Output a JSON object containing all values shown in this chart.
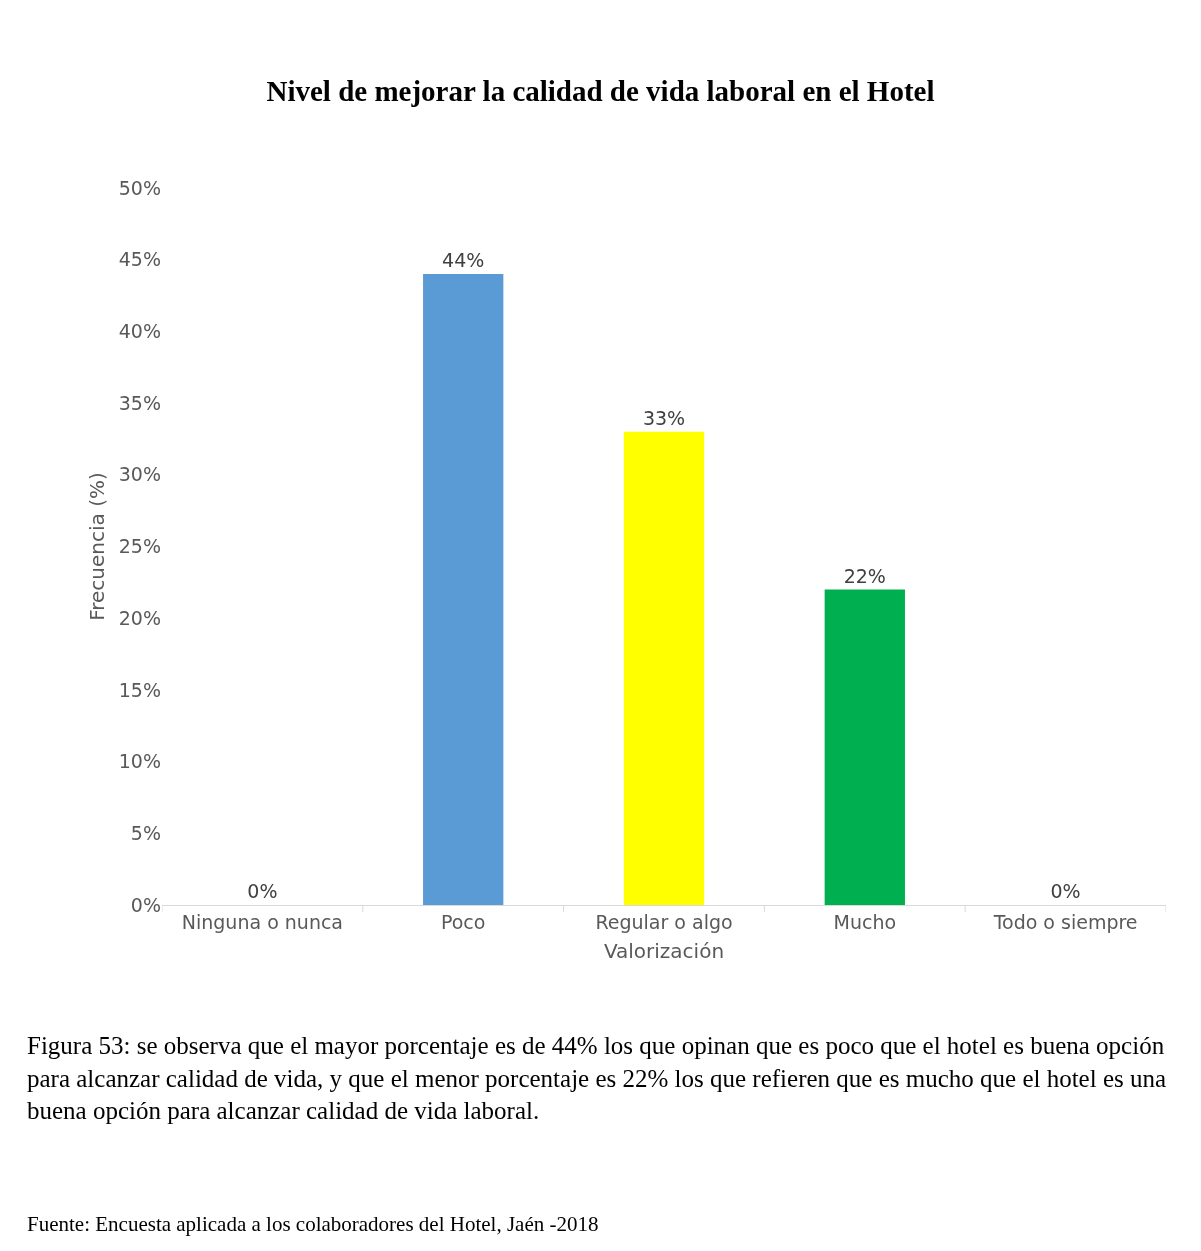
{
  "chart_data": {
    "type": "bar",
    "title": "Nivel de mejorar la calidad de vida laboral en el Hotel",
    "xlabel": "Valorización",
    "ylabel": "Frecuencia (%)",
    "categories": [
      "Ninguna o nunca",
      "Poco",
      "Regular o algo",
      "Mucho",
      "Todo o siempre"
    ],
    "values": [
      0,
      44,
      33,
      22,
      0
    ],
    "colors": [
      "#5b9bd5",
      "#5b9bd5",
      "#ffff00",
      "#00b050",
      "#00b050"
    ],
    "value_labels": [
      "0%",
      "44%",
      "33%",
      "22%",
      "0%"
    ],
    "ylim": [
      0,
      50
    ],
    "yticks": [
      {
        "value": 0,
        "label": "0%"
      },
      {
        "value": 5,
        "label": "5%"
      },
      {
        "value": 10,
        "label": "10%"
      },
      {
        "value": 15,
        "label": "15%"
      },
      {
        "value": 20,
        "label": "20%"
      },
      {
        "value": 25,
        "label": "25%"
      },
      {
        "value": 30,
        "label": "30%"
      },
      {
        "value": 35,
        "label": "35%"
      },
      {
        "value": 40,
        "label": "40%"
      },
      {
        "value": 45,
        "label": "45%"
      },
      {
        "value": 50,
        "label": "50%"
      }
    ],
    "annotations": [
      "Figura 53: se observa que el mayor porcentaje es de 44% los que opinan que es poco que el hotel es buena opción para alcanzar calidad de vida, y que el menor porcentaje es 22% los que refieren que es mucho que el hotel es una buena opción para alcanzar calidad de vida laboral.",
      "Fuente: Encuesta aplicada a los colaboradores del Hotel, Jaén -2018"
    ]
  }
}
